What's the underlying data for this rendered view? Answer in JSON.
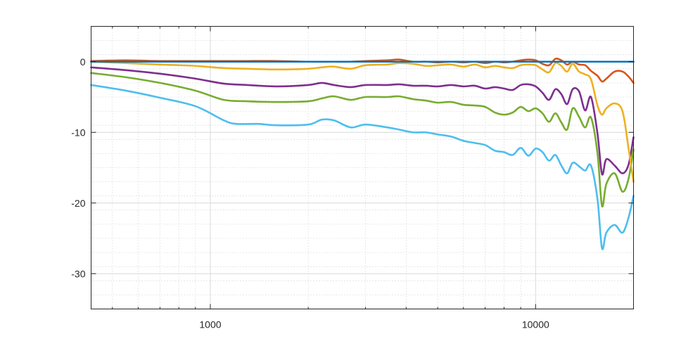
{
  "chart_data": {
    "type": "line",
    "title": "",
    "xlabel": "",
    "ylabel": "",
    "x_scale": "log",
    "xlim": [
      430,
      20000
    ],
    "ylim": [
      -35,
      5
    ],
    "grid": true,
    "legend": "none",
    "x_ticks": [
      {
        "value": 1000,
        "label": "1000"
      },
      {
        "value": 10000,
        "label": "10000"
      }
    ],
    "y_ticks": [
      {
        "value": 0,
        "label": "0"
      },
      {
        "value": -10,
        "label": "-10"
      },
      {
        "value": -20,
        "label": "-20"
      },
      {
        "value": -30,
        "label": "-30"
      }
    ],
    "series": [
      {
        "color": "#77ac30",
        "points": [
          [
            430,
            -1.6
          ],
          [
            550,
            -2.2
          ],
          [
            700,
            -3.0
          ],
          [
            900,
            -4.1
          ],
          [
            1100,
            -5.4
          ],
          [
            1300,
            -5.6
          ],
          [
            1600,
            -5.7
          ],
          [
            2000,
            -5.6
          ],
          [
            2200,
            -5.2
          ],
          [
            2400,
            -4.9
          ],
          [
            2700,
            -5.4
          ],
          [
            3000,
            -5.0
          ],
          [
            3500,
            -5.0
          ],
          [
            3800,
            -4.9
          ],
          [
            4200,
            -5.3
          ],
          [
            4600,
            -5.5
          ],
          [
            5000,
            -5.8
          ],
          [
            5500,
            -5.7
          ],
          [
            6000,
            -6.1
          ],
          [
            6500,
            -6.2
          ],
          [
            7000,
            -6.4
          ],
          [
            7500,
            -7.2
          ],
          [
            8000,
            -7.5
          ],
          [
            8500,
            -7.2
          ],
          [
            9000,
            -6.4
          ],
          [
            9500,
            -7.0
          ],
          [
            10000,
            -6.6
          ],
          [
            10500,
            -7.3
          ],
          [
            11000,
            -8.5
          ],
          [
            11500,
            -7.3
          ],
          [
            12000,
            -8.6
          ],
          [
            12500,
            -9.6
          ],
          [
            13000,
            -6.6
          ],
          [
            13600,
            -7.8
          ],
          [
            14200,
            -9.3
          ],
          [
            14800,
            -7.9
          ],
          [
            15500,
            -13.0
          ],
          [
            16000,
            -20.4
          ],
          [
            16500,
            -17.3
          ],
          [
            17500,
            -15.8
          ],
          [
            18500,
            -18.4
          ],
          [
            19300,
            -16.6
          ],
          [
            20000,
            -12.4
          ]
        ]
      },
      {
        "color": "#7e2f8e",
        "points": [
          [
            430,
            -0.8
          ],
          [
            550,
            -1.2
          ],
          [
            700,
            -1.7
          ],
          [
            900,
            -2.4
          ],
          [
            1100,
            -3.1
          ],
          [
            1300,
            -3.3
          ],
          [
            1600,
            -3.5
          ],
          [
            2000,
            -3.3
          ],
          [
            2200,
            -3.0
          ],
          [
            2400,
            -3.3
          ],
          [
            2700,
            -3.6
          ],
          [
            3000,
            -3.3
          ],
          [
            3500,
            -3.3
          ],
          [
            3800,
            -3.2
          ],
          [
            4200,
            -3.4
          ],
          [
            4600,
            -3.4
          ],
          [
            5000,
            -3.5
          ],
          [
            5500,
            -3.3
          ],
          [
            6000,
            -3.5
          ],
          [
            6500,
            -3.4
          ],
          [
            7000,
            -3.8
          ],
          [
            7500,
            -3.6
          ],
          [
            8000,
            -3.8
          ],
          [
            8500,
            -4.0
          ],
          [
            9000,
            -3.3
          ],
          [
            9500,
            -3.2
          ],
          [
            10000,
            -3.5
          ],
          [
            10500,
            -4.4
          ],
          [
            11000,
            -5.4
          ],
          [
            11500,
            -3.9
          ],
          [
            12000,
            -4.6
          ],
          [
            12500,
            -6.0
          ],
          [
            13000,
            -3.9
          ],
          [
            13600,
            -4.2
          ],
          [
            14200,
            -6.9
          ],
          [
            14800,
            -5.0
          ],
          [
            15500,
            -10.2
          ],
          [
            16000,
            -15.9
          ],
          [
            16500,
            -13.8
          ],
          [
            17500,
            -14.7
          ],
          [
            18500,
            -15.8
          ],
          [
            19300,
            -14.6
          ],
          [
            20000,
            -10.7
          ]
        ]
      },
      {
        "color": "#edb120",
        "points": [
          [
            430,
            0.0
          ],
          [
            550,
            -0.2
          ],
          [
            700,
            -0.4
          ],
          [
            900,
            -0.6
          ],
          [
            1100,
            -0.9
          ],
          [
            1300,
            -1.0
          ],
          [
            1600,
            -1.1
          ],
          [
            2000,
            -1.0
          ],
          [
            2200,
            -0.8
          ],
          [
            2400,
            -0.7
          ],
          [
            2700,
            -1.0
          ],
          [
            3000,
            -0.5
          ],
          [
            3500,
            -0.4
          ],
          [
            3800,
            -0.2
          ],
          [
            4200,
            -0.3
          ],
          [
            4600,
            -0.6
          ],
          [
            5000,
            -0.5
          ],
          [
            5500,
            -0.4
          ],
          [
            6000,
            -0.7
          ],
          [
            6500,
            -0.4
          ],
          [
            7000,
            -0.8
          ],
          [
            7500,
            -0.6
          ],
          [
            8000,
            -0.8
          ],
          [
            8500,
            -0.9
          ],
          [
            9000,
            -0.5
          ],
          [
            9500,
            -0.4
          ],
          [
            10000,
            -0.5
          ],
          [
            10500,
            -1.1
          ],
          [
            11000,
            -1.5
          ],
          [
            11500,
            -0.2
          ],
          [
            12000,
            -0.6
          ],
          [
            12500,
            -1.4
          ],
          [
            13000,
            -0.3
          ],
          [
            13600,
            -1.4
          ],
          [
            14200,
            -1.8
          ],
          [
            14800,
            -2.5
          ],
          [
            15500,
            -6.2
          ],
          [
            16000,
            -7.5
          ],
          [
            16500,
            -6.6
          ],
          [
            17500,
            -5.9
          ],
          [
            18500,
            -7.0
          ],
          [
            19300,
            -12.2
          ],
          [
            20000,
            -17.0
          ]
        ]
      },
      {
        "color": "#d95319",
        "points": [
          [
            430,
            0.1
          ],
          [
            550,
            0.2
          ],
          [
            700,
            0.1
          ],
          [
            900,
            0.1
          ],
          [
            1100,
            0.1
          ],
          [
            1300,
            0.1
          ],
          [
            1600,
            0.1
          ],
          [
            2000,
            0.0
          ],
          [
            2400,
            0.0
          ],
          [
            2700,
            0.0
          ],
          [
            3000,
            0.1
          ],
          [
            3500,
            0.2
          ],
          [
            3800,
            0.3
          ],
          [
            4200,
            0.0
          ],
          [
            4600,
            0.0
          ],
          [
            5000,
            -0.1
          ],
          [
            5500,
            0.0
          ],
          [
            6000,
            -0.1
          ],
          [
            6500,
            0.0
          ],
          [
            7000,
            -0.2
          ],
          [
            7500,
            0.0
          ],
          [
            8000,
            -0.1
          ],
          [
            8500,
            0.0
          ],
          [
            9000,
            0.2
          ],
          [
            9500,
            0.3
          ],
          [
            10000,
            0.2
          ],
          [
            10500,
            -0.3
          ],
          [
            11000,
            -0.5
          ],
          [
            11500,
            0.4
          ],
          [
            12000,
            0.2
          ],
          [
            12500,
            -0.4
          ],
          [
            13000,
            0.0
          ],
          [
            13600,
            -0.4
          ],
          [
            14200,
            -0.5
          ],
          [
            14800,
            -1.3
          ],
          [
            15500,
            -2.0
          ],
          [
            16000,
            -2.8
          ],
          [
            16500,
            -2.4
          ],
          [
            17500,
            -1.4
          ],
          [
            18500,
            -1.4
          ],
          [
            19300,
            -2.1
          ],
          [
            20000,
            -3.0
          ]
        ]
      },
      {
        "color": "#4dbeee",
        "points": [
          [
            430,
            -3.3
          ],
          [
            550,
            -4.1
          ],
          [
            700,
            -5.1
          ],
          [
            900,
            -6.3
          ],
          [
            1100,
            -8.3
          ],
          [
            1200,
            -8.8
          ],
          [
            1400,
            -8.8
          ],
          [
            1600,
            -9.0
          ],
          [
            2000,
            -8.9
          ],
          [
            2200,
            -8.2
          ],
          [
            2400,
            -8.3
          ],
          [
            2700,
            -9.3
          ],
          [
            3000,
            -8.9
          ],
          [
            3500,
            -9.3
          ],
          [
            3800,
            -9.6
          ],
          [
            4200,
            -10.0
          ],
          [
            4600,
            -10.0
          ],
          [
            5000,
            -10.3
          ],
          [
            5500,
            -10.6
          ],
          [
            6000,
            -11.2
          ],
          [
            6500,
            -11.5
          ],
          [
            7000,
            -11.8
          ],
          [
            7500,
            -12.6
          ],
          [
            8000,
            -12.8
          ],
          [
            8500,
            -13.2
          ],
          [
            9000,
            -12.2
          ],
          [
            9500,
            -13.3
          ],
          [
            10000,
            -12.3
          ],
          [
            10500,
            -12.8
          ],
          [
            11000,
            -14.0
          ],
          [
            11500,
            -13.2
          ],
          [
            12000,
            -14.7
          ],
          [
            12500,
            -15.8
          ],
          [
            13000,
            -14.3
          ],
          [
            13600,
            -14.8
          ],
          [
            14200,
            -15.4
          ],
          [
            14800,
            -14.7
          ],
          [
            15500,
            -19.5
          ],
          [
            16000,
            -26.4
          ],
          [
            16500,
            -24.2
          ],
          [
            17500,
            -23.1
          ],
          [
            18500,
            -24.2
          ],
          [
            19300,
            -22.1
          ],
          [
            20000,
            -19.0
          ]
        ]
      },
      {
        "color": "#0072bd",
        "points": [
          [
            430,
            0.0
          ],
          [
            1000,
            0.0
          ],
          [
            5000,
            0.0
          ],
          [
            10000,
            0.0
          ],
          [
            15000,
            0.0
          ],
          [
            20000,
            0.0
          ]
        ]
      }
    ]
  }
}
